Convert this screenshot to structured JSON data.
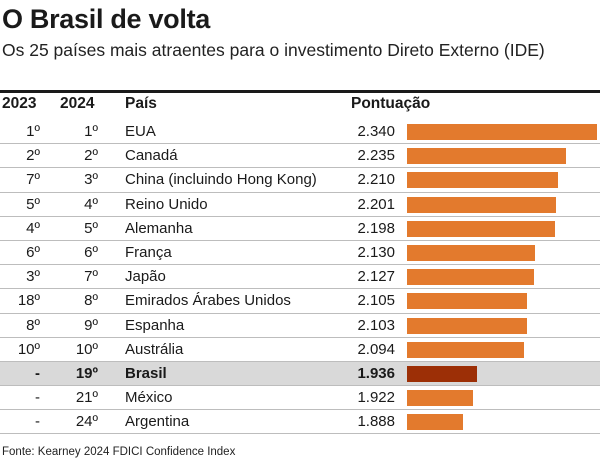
{
  "title": "O Brasil de volta",
  "subtitle": "Os 25 países mais atraentes para o investimento Direto Externo (IDE)",
  "headers": {
    "y2023": "2023",
    "y2024": "2024",
    "country": "País",
    "score": "Pontuação"
  },
  "source": "Fonte: Kearney 2024 FDICI Confidence Index",
  "colors": {
    "bar": "#e37a2d",
    "highlight_bar": "#9c2f06",
    "highlight_row": "#d9d9d9"
  },
  "chart_data": {
    "type": "bar",
    "orientation": "horizontal",
    "categories": [
      "EUA",
      "Canadá",
      "China (incluindo Hong Kong)",
      "Reino Unido",
      "Alemanha",
      "França",
      "Japão",
      "Emirados Árabes Unidos",
      "Espanha",
      "Austrália",
      "Brasil",
      "México",
      "Argentina"
    ],
    "values": [
      2.34,
      2.235,
      2.21,
      2.201,
      2.198,
      2.13,
      2.127,
      2.105,
      2.103,
      2.094,
      1.936,
      1.922,
      1.888
    ],
    "title": "O Brasil de volta",
    "subtitle": "Os 25 países mais atraentes para o investimento Direto Externo (IDE)",
    "value_label": "Pontuação",
    "highlight": "Brasil",
    "rows": [
      {
        "rank2023": "1º",
        "rank2024": "1º",
        "country": "EUA",
        "score_label": "2.340",
        "score": 2.34
      },
      {
        "rank2023": "2º",
        "rank2024": "2º",
        "country": "Canadá",
        "score_label": "2.235",
        "score": 2.235
      },
      {
        "rank2023": "7º",
        "rank2024": "3º",
        "country": "China (incluindo Hong Kong)",
        "score_label": "2.210",
        "score": 2.21
      },
      {
        "rank2023": "5º",
        "rank2024": "4º",
        "country": "Reino Unido",
        "score_label": "2.201",
        "score": 2.201
      },
      {
        "rank2023": "4º",
        "rank2024": "5º",
        "country": "Alemanha",
        "score_label": "2.198",
        "score": 2.198
      },
      {
        "rank2023": "6º",
        "rank2024": "6º",
        "country": "França",
        "score_label": "2.130",
        "score": 2.13
      },
      {
        "rank2023": "3º",
        "rank2024": "7º",
        "country": "Japão",
        "score_label": "2.127",
        "score": 2.127
      },
      {
        "rank2023": "18º",
        "rank2024": "8º",
        "country": "Emirados Árabes Unidos",
        "score_label": "2.105",
        "score": 2.105
      },
      {
        "rank2023": "8º",
        "rank2024": "9º",
        "country": "Espanha",
        "score_label": "2.103",
        "score": 2.103
      },
      {
        "rank2023": "10º",
        "rank2024": "10º",
        "country": "Austrália",
        "score_label": "2.094",
        "score": 2.094
      },
      {
        "rank2023": "-",
        "rank2024": "19º",
        "country": "Brasil",
        "score_label": "1.936",
        "score": 1.936,
        "highlight": true
      },
      {
        "rank2023": "-",
        "rank2024": "21º",
        "country": "México",
        "score_label": "1.922",
        "score": 1.922
      },
      {
        "rank2023": "-",
        "rank2024": "24º",
        "country": "Argentina",
        "score_label": "1.888",
        "score": 1.888
      }
    ]
  }
}
